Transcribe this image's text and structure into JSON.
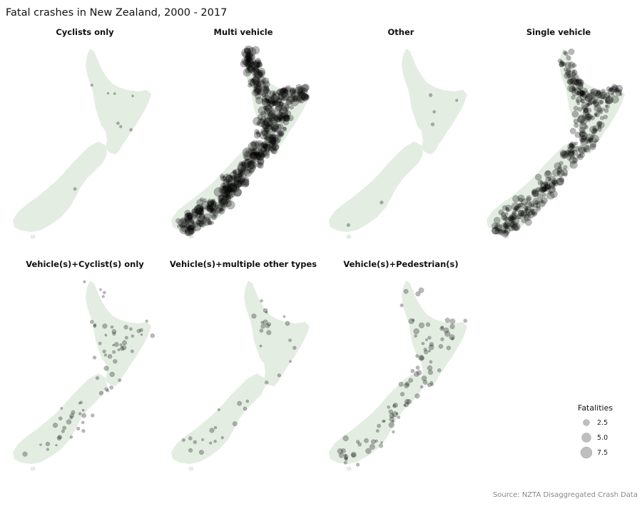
{
  "title": "Fatal crashes in New Zealand, 2000 - 2017",
  "source": "Source: NZTA Disaggregated Crash Data",
  "panels": [
    {
      "title": "Cyclists only",
      "density": "sparse"
    },
    {
      "title": "Multi vehicle",
      "density": "very dense"
    },
    {
      "title": "Other",
      "density": "sparse"
    },
    {
      "title": "Single vehicle",
      "density": "dense"
    },
    {
      "title": "Vehicle(s)+Cyclist(s) only",
      "density": "moderate"
    },
    {
      "title": "Vehicle(s)+multiple other types",
      "density": "sparse"
    },
    {
      "title": "Vehicle(s)+Pedestrian(s)",
      "density": "moderate"
    }
  ],
  "legend": {
    "title": "Fatalities",
    "items": [
      {
        "label": "2.5",
        "value": 2.5
      },
      {
        "label": "5.0",
        "value": 5.0
      },
      {
        "label": "7.5",
        "value": 7.5
      }
    ]
  },
  "colors": {
    "land": "#e3ede2",
    "point": "#000000"
  }
}
